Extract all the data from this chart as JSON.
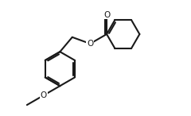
{
  "bg_color": "#ffffff",
  "bond_color": "#1a1a1a",
  "bond_lw": 1.5,
  "dbo": 0.05,
  "figsize": [
    2.4,
    1.46
  ],
  "dpi": 100,
  "xlim": [
    0.0,
    5.2
  ],
  "ylim": [
    0.0,
    3.5
  ]
}
